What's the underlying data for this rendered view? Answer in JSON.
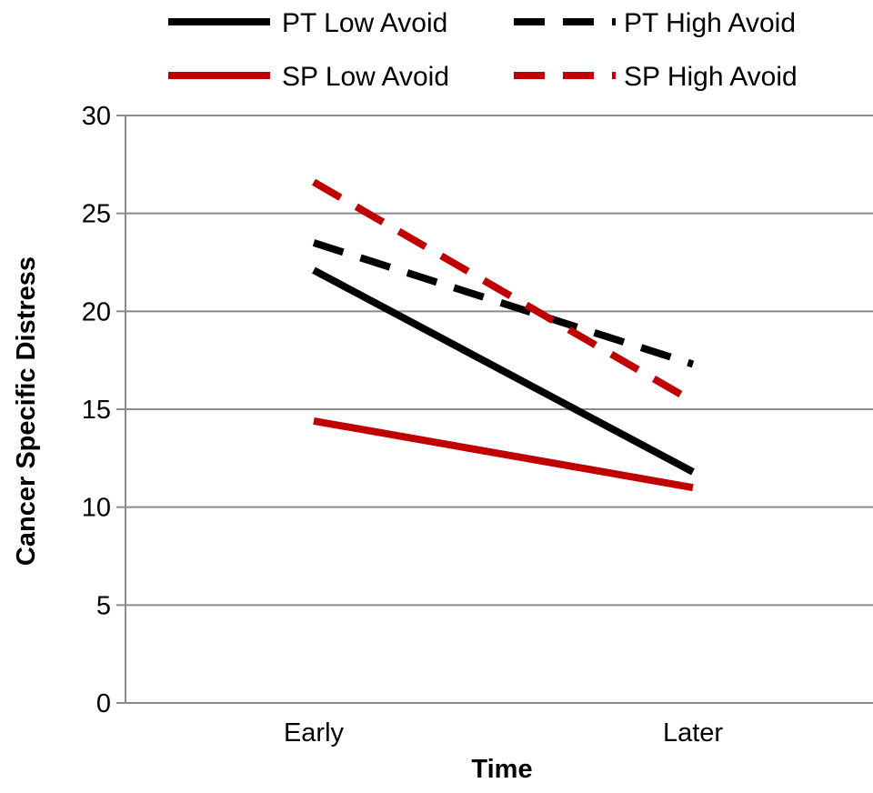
{
  "chart_data": {
    "type": "line",
    "title": "",
    "xlabel": "Time",
    "ylabel": "Cancer Specific Distress",
    "categories": [
      "Early",
      "Later"
    ],
    "ylim": [
      0,
      30
    ],
    "yticks": [
      0,
      5,
      10,
      15,
      20,
      25,
      30
    ],
    "grid": true,
    "legend_position": "top",
    "series": [
      {
        "name": "PT Low Avoid",
        "values": [
          22.1,
          11.8
        ],
        "color": "#000000",
        "dashed": false
      },
      {
        "name": "PT High Avoid",
        "values": [
          23.5,
          17.3
        ],
        "color": "#000000",
        "dashed": true
      },
      {
        "name": "SP Low Avoid",
        "values": [
          14.4,
          11.0
        ],
        "color": "#c00000",
        "dashed": false
      },
      {
        "name": "SP High Avoid",
        "values": [
          26.6,
          15.4
        ],
        "color": "#c00000",
        "dashed": true
      }
    ]
  }
}
